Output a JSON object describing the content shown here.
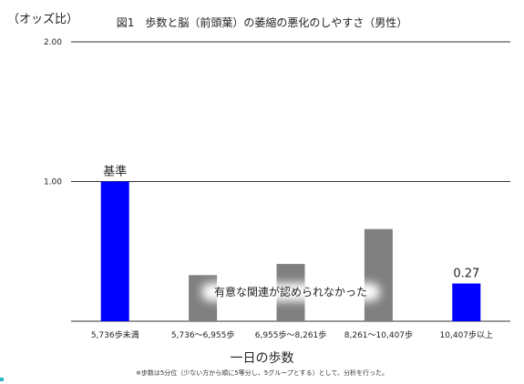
{
  "colors": {
    "reference": "#0000ff",
    "not_significant": "#808080",
    "axis": "#333333"
  },
  "y_axis_label": "（オッズ比）",
  "title": "図1　歩数と脳（前頭葉）の萎縮の悪化のしやすさ（男性）",
  "x_axis_label": "一日の歩数",
  "footnote": "※歩数は5分位（少ない方から順に5等分し、5グループとする）として、分析を行った。",
  "annotation_text": "有意な関連が認められなかった",
  "chart_data": {
    "type": "bar",
    "title": "図1　歩数と脳（前頭葉）の萎縮の悪化のしやすさ（男性）",
    "xlabel": "一日の歩数",
    "ylabel": "（オッズ比）",
    "categories": [
      "5,736歩未満",
      "5,736〜6,955歩",
      "6,955歩〜8,261歩",
      "8,261〜10,407歩",
      "10,407歩以上"
    ],
    "values": [
      1.0,
      0.33,
      0.41,
      0.66,
      0.27
    ],
    "bar_colors": [
      "#0000ff",
      "#808080",
      "#808080",
      "#808080",
      "#0000ff"
    ],
    "data_labels": [
      "基準",
      "",
      "",
      "",
      "0.27"
    ],
    "ylim": [
      0,
      2.0
    ],
    "yticks": [
      "2.00",
      "1.00"
    ],
    "ytick_values": [
      2.0,
      1.0
    ],
    "grid": true,
    "annotation": "有意な関連が認められなかった"
  }
}
